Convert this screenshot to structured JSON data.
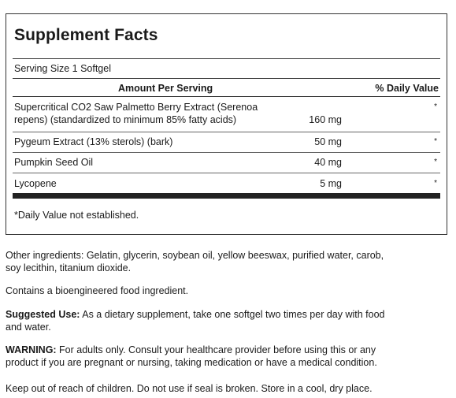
{
  "supplement_facts": {
    "title": "Supplement Facts",
    "serving_size": "Serving Size 1 Softgel",
    "col_amount": "Amount Per Serving",
    "col_daily_value": "% Daily Value",
    "rows": [
      {
        "name_line1": "Supercritical CO2 Saw Palmetto Berry Extract (Serenoa",
        "name_line2": "repens) (standardized to minimum 85% fatty acids)",
        "amount": "160 mg",
        "dv": "*"
      },
      {
        "name": "Pygeum Extract (13% sterols) (bark)",
        "amount": "50 mg",
        "dv": "*"
      },
      {
        "name": "Pumpkin Seed Oil",
        "amount": "40 mg",
        "dv": "*"
      },
      {
        "name": "Lycopene",
        "amount": "5 mg",
        "dv": "*"
      }
    ],
    "footnote": "*Daily Value not established."
  },
  "other_ingredients": {
    "line1": "Other ingredients: Gelatin, glycerin, soybean oil, yellow beeswax, purified water, carob,",
    "line2": "soy lecithin, titanium dioxide."
  },
  "bioengineered": "Contains a bioengineered food ingredient.",
  "suggested_use": {
    "label": "Suggested Use:",
    "line1": " As a dietary supplement, take one softgel two times per day with food",
    "line2": "and water."
  },
  "warning": {
    "label": "WARNING:",
    "line1": " For adults only. Consult your healthcare provider before using this or any",
    "line2": "product if you are pregnant or nursing, taking medication or have a medical condition."
  },
  "storage": "Keep out of reach of children. Do not use if seal is broken. Store in a cool, dry place."
}
